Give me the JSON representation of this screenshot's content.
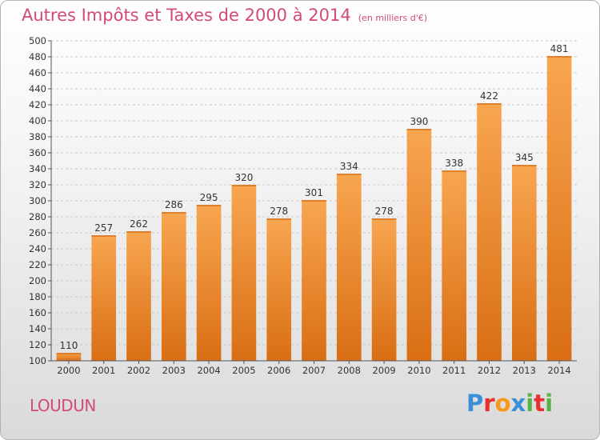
{
  "title": "Autres Impôts et Taxes de 2000 à 2014",
  "unit": "(en milliers d'€)",
  "commune": "LOUDUN",
  "logo": {
    "letters": [
      "P",
      "r",
      "o",
      "x",
      "i",
      "t",
      "i"
    ],
    "colors": [
      "#3a8fd6",
      "#e8312f",
      "#f59a1b",
      "#3a8fd6",
      "#57b247",
      "#e8312f",
      "#57b247"
    ]
  },
  "chart_data": {
    "type": "bar",
    "title": "Autres Impôts et Taxes de 2000 à 2014",
    "ylabel": "",
    "xlabel": "",
    "categories": [
      "2000",
      "2001",
      "2002",
      "2003",
      "2004",
      "2005",
      "2006",
      "2007",
      "2008",
      "2009",
      "2010",
      "2011",
      "2012",
      "2013",
      "2014"
    ],
    "values": [
      110,
      257,
      262,
      286,
      295,
      320,
      278,
      301,
      334,
      278,
      390,
      338,
      422,
      345,
      481
    ],
    "ylim": [
      100,
      500
    ],
    "yticks": [
      100,
      120,
      140,
      160,
      180,
      200,
      220,
      240,
      260,
      280,
      300,
      320,
      340,
      360,
      380,
      400,
      420,
      440,
      460,
      480,
      500
    ],
    "grid": true,
    "bar_color": "#f08a2c"
  }
}
